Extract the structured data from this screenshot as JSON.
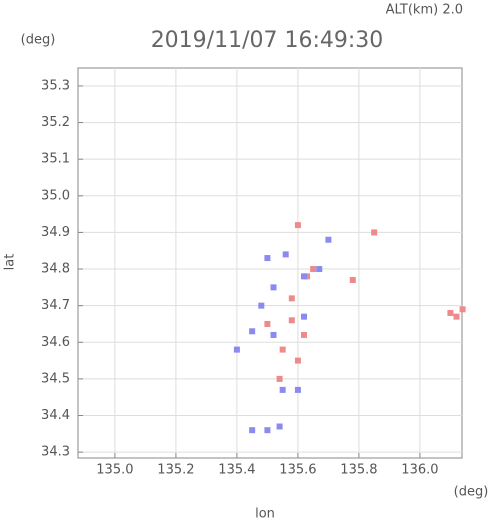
{
  "chart_data": {
    "type": "scatter",
    "title": "2019/11/07 16:49:30",
    "subtitle": "ALT(km) 2.0",
    "x_label": "lon",
    "y_label": "lat",
    "x_unit": "(deg)",
    "y_unit": "(deg)",
    "xlim": [
      134.879,
      136.138
    ],
    "ylim": [
      34.284,
      35.349
    ],
    "xticks": [
      {
        "value": 135,
        "label": "135.0"
      },
      135.2,
      135.4,
      135.6,
      135.8,
      {
        "value": 136,
        "label": "136.0"
      }
    ],
    "yticks": [
      34.3,
      34.4,
      34.5,
      34.6,
      34.7,
      34.8,
      34.9,
      {
        "value": 35,
        "label": "35.0"
      },
      35.1,
      35.2,
      35.3
    ],
    "grid": true,
    "series": [
      {
        "color": "#f08a8a",
        "x": [
          135.58,
          135.62,
          135.55,
          135.6,
          135.54,
          135.65,
          135.63,
          135.78,
          136.1,
          136.12,
          136.14,
          135.6,
          135.85,
          135.5,
          135.58
        ],
        "y": [
          34.72,
          34.62,
          34.58,
          34.55,
          34.5,
          34.8,
          34.78,
          34.77,
          34.68,
          34.67,
          34.69,
          34.92,
          34.9,
          34.65,
          34.66
        ]
      },
      {
        "color": "#8a8af0",
        "x": [
          135.5,
          135.56,
          135.62,
          135.67,
          135.45,
          135.52,
          135.62,
          135.4,
          135.55,
          135.45,
          135.5,
          135.54,
          135.6,
          135.48,
          135.52,
          135.7
        ],
        "y": [
          34.83,
          34.84,
          34.78,
          34.8,
          34.63,
          34.62,
          34.67,
          34.58,
          34.47,
          34.36,
          34.36,
          34.37,
          34.47,
          34.7,
          34.75,
          34.88
        ]
      }
    ]
  }
}
